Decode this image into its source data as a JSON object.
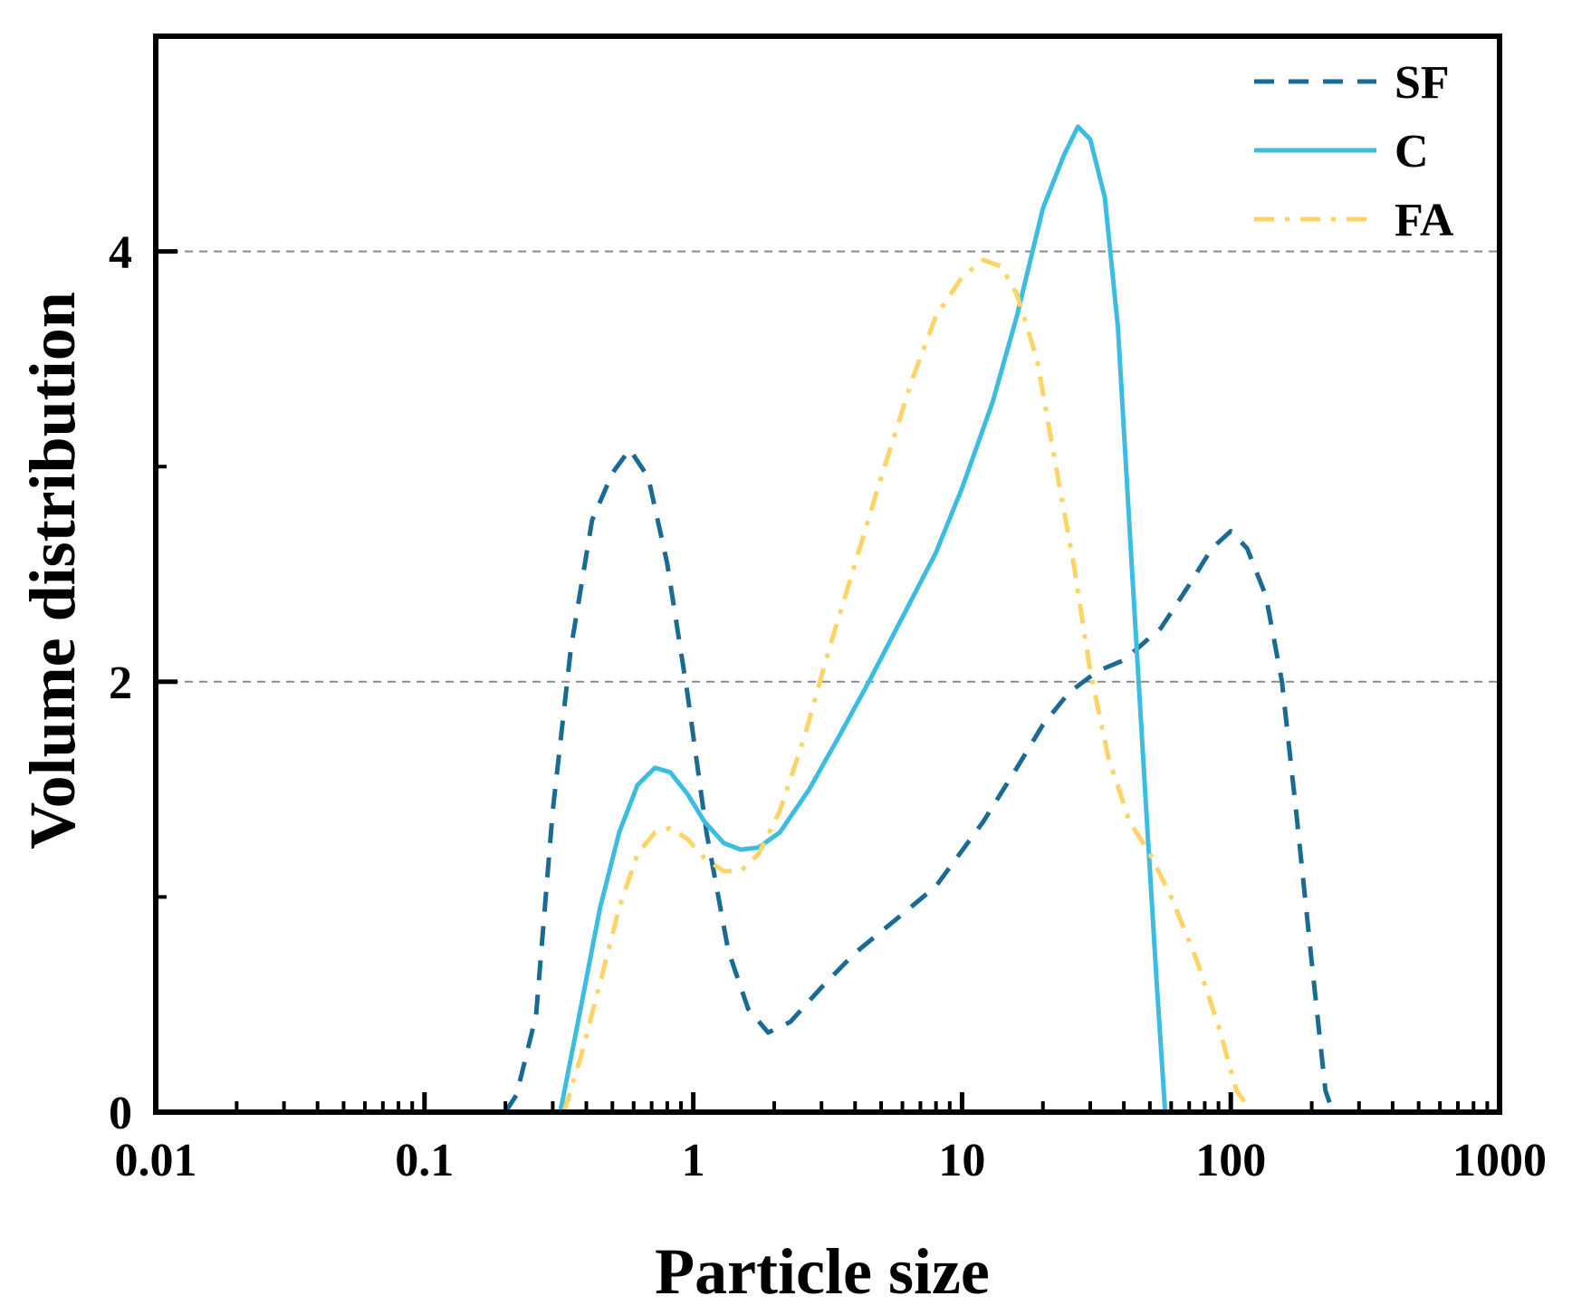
{
  "chart_data": {
    "type": "line",
    "xlabel": "Particle size",
    "ylabel": "Volume distribution",
    "xscale": "log",
    "xlim": [
      0.01,
      1000
    ],
    "ylim": [
      0,
      5
    ],
    "x_ticks": [
      0.01,
      0.1,
      1,
      10,
      100,
      1000
    ],
    "x_tick_labels": [
      "0.01",
      "0.1",
      "1",
      "10",
      "100",
      "1000"
    ],
    "y_ticks": [
      0,
      2,
      4
    ],
    "y_tick_labels": [
      "0",
      "2",
      "4"
    ],
    "grid": "horizontal dashed at y=2 and y=4",
    "legend_position": "top-right",
    "series": [
      {
        "name": "SF",
        "color": "#1a6b94",
        "style": "dashed",
        "points": [
          [
            0.2,
            0
          ],
          [
            0.22,
            0.08
          ],
          [
            0.26,
            0.45
          ],
          [
            0.3,
            1.4
          ],
          [
            0.35,
            2.15
          ],
          [
            0.42,
            2.75
          ],
          [
            0.5,
            2.97
          ],
          [
            0.58,
            3.08
          ],
          [
            0.68,
            2.95
          ],
          [
            0.8,
            2.55
          ],
          [
            0.95,
            1.95
          ],
          [
            1.12,
            1.3
          ],
          [
            1.35,
            0.75
          ],
          [
            1.6,
            0.48
          ],
          [
            1.9,
            0.37
          ],
          [
            2.3,
            0.42
          ],
          [
            3,
            0.58
          ],
          [
            4,
            0.74
          ],
          [
            6,
            0.92
          ],
          [
            8,
            1.05
          ],
          [
            12,
            1.35
          ],
          [
            16,
            1.6
          ],
          [
            20,
            1.8
          ],
          [
            25,
            1.95
          ],
          [
            32,
            2.05
          ],
          [
            40,
            2.1
          ],
          [
            55,
            2.25
          ],
          [
            70,
            2.45
          ],
          [
            85,
            2.62
          ],
          [
            100,
            2.7
          ],
          [
            115,
            2.62
          ],
          [
            135,
            2.4
          ],
          [
            155,
            2.0
          ],
          [
            175,
            1.4
          ],
          [
            200,
            0.7
          ],
          [
            225,
            0.1
          ],
          [
            240,
            0
          ]
        ]
      },
      {
        "name": "C",
        "color": "#3cbde0",
        "style": "solid",
        "points": [
          [
            0.32,
            0
          ],
          [
            0.37,
            0.4
          ],
          [
            0.45,
            0.95
          ],
          [
            0.53,
            1.3
          ],
          [
            0.62,
            1.52
          ],
          [
            0.72,
            1.6
          ],
          [
            0.82,
            1.58
          ],
          [
            0.95,
            1.48
          ],
          [
            1.1,
            1.35
          ],
          [
            1.3,
            1.25
          ],
          [
            1.5,
            1.22
          ],
          [
            1.75,
            1.23
          ],
          [
            2.1,
            1.3
          ],
          [
            2.7,
            1.5
          ],
          [
            3.5,
            1.75
          ],
          [
            4.5,
            2.0
          ],
          [
            6,
            2.3
          ],
          [
            8,
            2.6
          ],
          [
            10,
            2.9
          ],
          [
            13,
            3.3
          ],
          [
            16,
            3.7
          ],
          [
            20,
            4.2
          ],
          [
            24,
            4.45
          ],
          [
            27,
            4.58
          ],
          [
            30,
            4.52
          ],
          [
            34,
            4.25
          ],
          [
            38,
            3.65
          ],
          [
            43,
            2.5
          ],
          [
            49,
            1.3
          ],
          [
            53,
            0.6
          ],
          [
            57,
            0
          ]
        ]
      },
      {
        "name": "FA",
        "color": "#ffd466",
        "style": "dash-dot",
        "points": [
          [
            0.33,
            0
          ],
          [
            0.38,
            0.25
          ],
          [
            0.45,
            0.6
          ],
          [
            0.53,
            0.95
          ],
          [
            0.62,
            1.2
          ],
          [
            0.72,
            1.3
          ],
          [
            0.82,
            1.32
          ],
          [
            0.95,
            1.27
          ],
          [
            1.1,
            1.18
          ],
          [
            1.3,
            1.12
          ],
          [
            1.5,
            1.12
          ],
          [
            1.75,
            1.2
          ],
          [
            2.1,
            1.4
          ],
          [
            2.6,
            1.75
          ],
          [
            3.2,
            2.15
          ],
          [
            4,
            2.55
          ],
          [
            5,
            2.95
          ],
          [
            6.5,
            3.4
          ],
          [
            8,
            3.7
          ],
          [
            10,
            3.88
          ],
          [
            12,
            3.96
          ],
          [
            14,
            3.93
          ],
          [
            16,
            3.8
          ],
          [
            19,
            3.5
          ],
          [
            22,
            3.05
          ],
          [
            26,
            2.55
          ],
          [
            30,
            2.05
          ],
          [
            35,
            1.65
          ],
          [
            42,
            1.35
          ],
          [
            50,
            1.2
          ],
          [
            60,
            1.0
          ],
          [
            75,
            0.7
          ],
          [
            90,
            0.4
          ],
          [
            105,
            0.1
          ],
          [
            120,
            0
          ]
        ]
      }
    ]
  }
}
